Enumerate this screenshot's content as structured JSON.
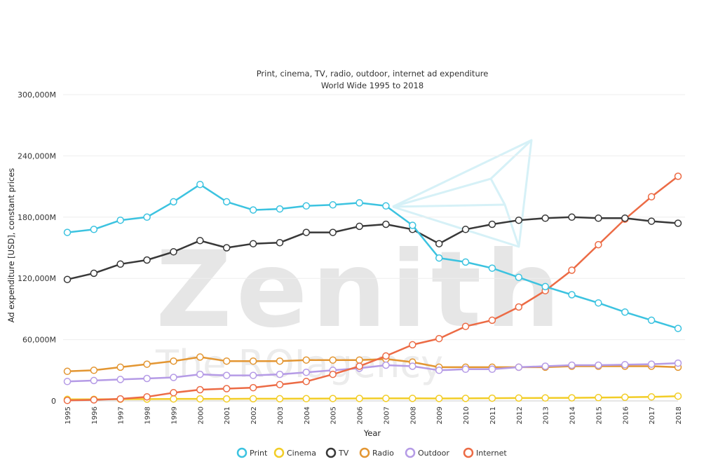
{
  "chart_data": {
    "type": "line",
    "title": "Print, cinema, TV, radio, outdoor, internet ad expenditure",
    "subtitle": "World Wide 1995 to 2018",
    "xlabel": "Year",
    "ylabel": "Ad expenditure [USD], constant prices",
    "ylim": [
      0,
      300000
    ],
    "y_ticks": [
      "0",
      "60,000M",
      "120,000M",
      "180,000M",
      "240,000M",
      "300,000M"
    ],
    "y_tick_values": [
      0,
      60000,
      120000,
      180000,
      240000,
      300000
    ],
    "categories": [
      "1995",
      "1996",
      "1997",
      "1998",
      "1999",
      "2000",
      "2001",
      "2002",
      "2003",
      "2004",
      "2005",
      "2006",
      "2007",
      "2008",
      "2009",
      "2010",
      "2011",
      "2012",
      "2013",
      "2014",
      "2015",
      "2016",
      "2017",
      "2018"
    ],
    "grid": true,
    "legend_position": "bottom",
    "series": [
      {
        "name": "Print",
        "color": "#3cc3e0",
        "values": [
          165000,
          168000,
          177000,
          180000,
          195000,
          212000,
          195000,
          187000,
          188000,
          191000,
          192000,
          194000,
          191000,
          172000,
          140000,
          136000,
          130000,
          121000,
          112000,
          104000,
          96000,
          87000,
          79000,
          71000
        ]
      },
      {
        "name": "Cinema",
        "color": "#f2cd26",
        "values": [
          1500,
          1600,
          1700,
          1800,
          1900,
          2000,
          2000,
          2100,
          2100,
          2200,
          2300,
          2400,
          2500,
          2500,
          2400,
          2500,
          2700,
          2800,
          2900,
          3000,
          3200,
          3600,
          3900,
          4700
        ]
      },
      {
        "name": "TV",
        "color": "#383838",
        "values": [
          119000,
          125000,
          134000,
          138000,
          146000,
          157000,
          150000,
          154000,
          155000,
          165000,
          165000,
          171000,
          173000,
          168000,
          154000,
          168000,
          173000,
          177000,
          179000,
          180000,
          179000,
          179000,
          176000,
          174000
        ]
      },
      {
        "name": "Radio",
        "color": "#e39632",
        "values": [
          29000,
          30000,
          33000,
          36000,
          39000,
          43000,
          39000,
          39000,
          39000,
          40000,
          40000,
          40000,
          41000,
          38000,
          33000,
          33000,
          33000,
          33000,
          33000,
          34000,
          34000,
          34000,
          34000,
          33000
        ]
      },
      {
        "name": "Outdoor",
        "color": "#b59be6",
        "values": [
          19000,
          20000,
          21000,
          22000,
          23000,
          26000,
          25000,
          25000,
          26000,
          28000,
          30000,
          32000,
          35000,
          34000,
          30000,
          31000,
          31000,
          33000,
          34000,
          35000,
          35000,
          35500,
          36000,
          37000
        ]
      },
      {
        "name": "Internet",
        "color": "#ec6b45",
        "values": [
          500,
          1000,
          2000,
          4000,
          8000,
          11000,
          12000,
          13000,
          16000,
          19000,
          26000,
          34000,
          44000,
          55000,
          61000,
          73000,
          79000,
          92000,
          108000,
          128000,
          153000,
          178000,
          200000,
          220000
        ]
      }
    ]
  },
  "watermark": {
    "logo_text": "Zenith",
    "tagline": "The ROIagency"
  }
}
